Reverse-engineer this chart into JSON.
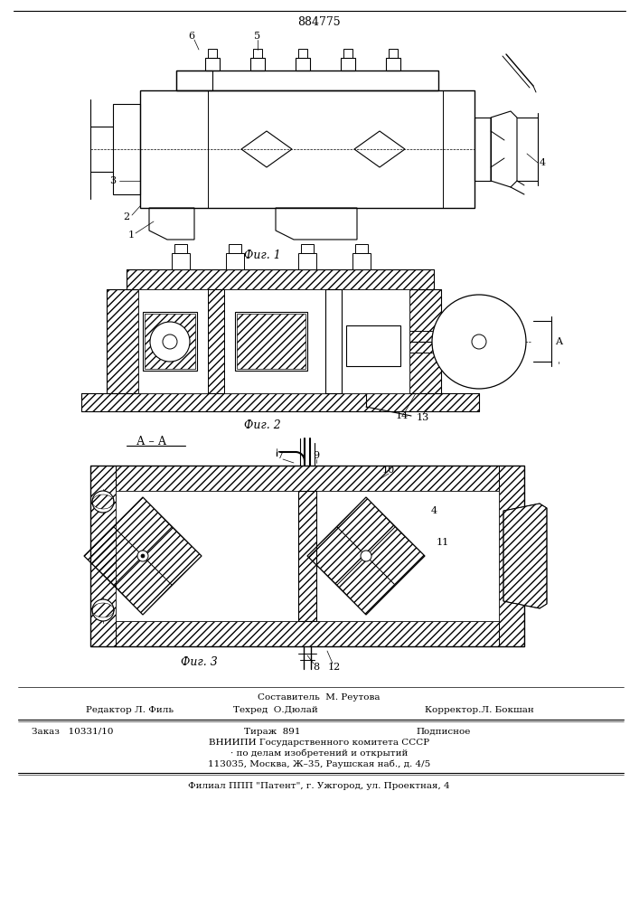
{
  "patent_number": "884775",
  "bg": "#ffffff",
  "lc": "#000000",
  "fig1_caption": "Фиг. 1",
  "fig2_caption": "Фиг. 2",
  "fig3_caption": "Фиг. 3",
  "section_label": "А – А",
  "footer_compose": "Составитель  М. Реутова",
  "footer_editor": "Редактор Л. Филь",
  "footer_techred": "Техред  О.Дюлай",
  "footer_correct": "Корректор.Л. Бокшан",
  "footer_order": "Заказ   10331/10",
  "footer_tirazh": "Тираж  891",
  "footer_podp": "Подписное",
  "footer_vniip": "ВНИИПИ Государственного комитета СССР",
  "footer_dela": "· по делам изобретений и открытий",
  "footer_addr": "113035, Москва, Ж–35, Раушская наб., д. 4/5",
  "footer_filial": "Филиал ППП \"Патент\", г. Ужгород, ул. Проектная, 4"
}
